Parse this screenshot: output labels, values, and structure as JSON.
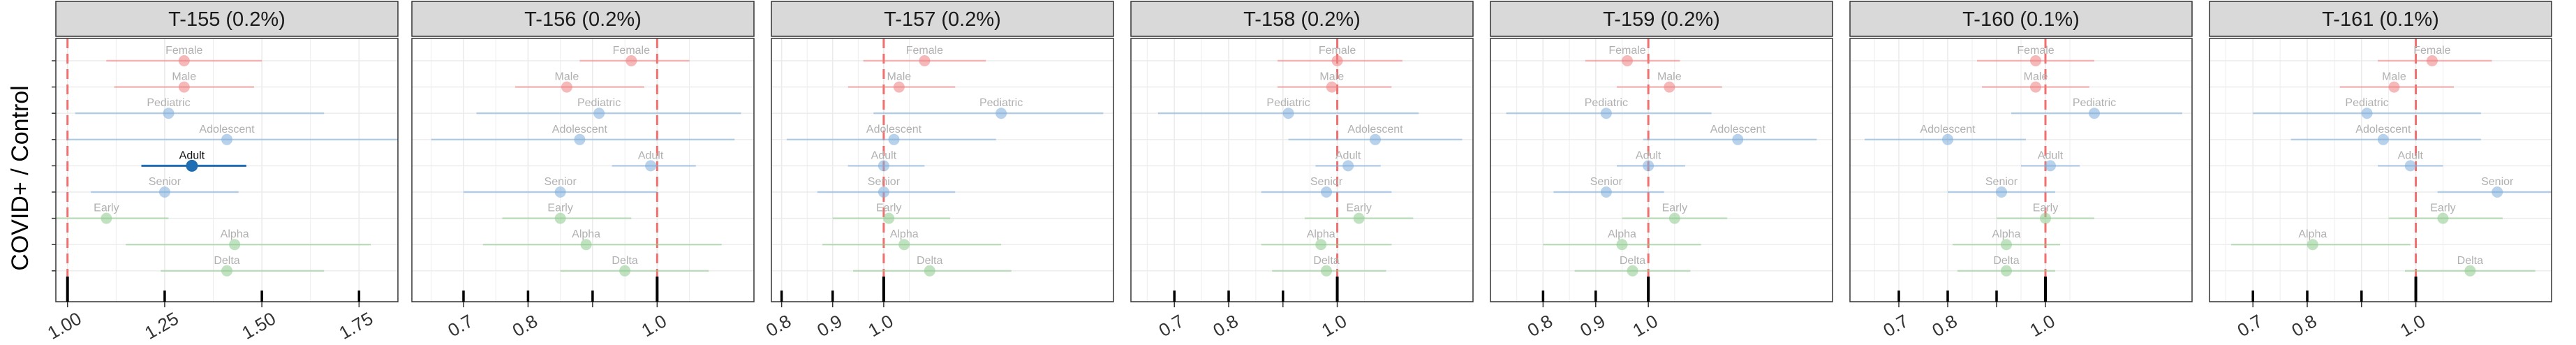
{
  "y_axis_label": "COVID+ / Control",
  "colors": {
    "sex": "#f08080",
    "age": "#7faedc",
    "variant": "#90cc90",
    "highlight": "#1f6db3",
    "reference_line": "#f07070",
    "strip_bg": "#d9d9d9",
    "grid": "#ebebeb"
  },
  "chart_data": [
    {
      "type": "scatter",
      "title": "T-155 (0.2%)",
      "xlim": [
        0.97,
        1.85
      ],
      "ticks": [
        1.0,
        1.25,
        1.5,
        1.75
      ],
      "tick_labels": [
        "1.00",
        "1.25",
        "1.50",
        "1.75"
      ],
      "reference_x": 1.0,
      "points": [
        {
          "label": "Female",
          "group": "sex",
          "y": 0,
          "x": 1.3,
          "lo": 1.1,
          "hi": 1.5,
          "highlight": false
        },
        {
          "label": "Male",
          "group": "sex",
          "y": 1,
          "x": 1.3,
          "lo": 1.12,
          "hi": 1.48,
          "highlight": false
        },
        {
          "label": "Pediatric",
          "group": "age",
          "y": 2,
          "x": 1.26,
          "lo": 1.02,
          "hi": 1.66,
          "highlight": false
        },
        {
          "label": "Adolescent",
          "group": "age",
          "y": 3,
          "x": 1.41,
          "lo": 1.0,
          "hi": 1.85,
          "highlight": false
        },
        {
          "label": "Adult",
          "group": "age",
          "y": 4,
          "x": 1.32,
          "lo": 1.19,
          "hi": 1.46,
          "highlight": true
        },
        {
          "label": "Senior",
          "group": "age",
          "y": 5,
          "x": 1.25,
          "lo": 1.06,
          "hi": 1.44,
          "highlight": false
        },
        {
          "label": "Early",
          "group": "variant",
          "y": 6,
          "x": 1.1,
          "lo": 0.97,
          "hi": 1.26,
          "highlight": false
        },
        {
          "label": "Alpha",
          "group": "variant",
          "y": 7,
          "x": 1.43,
          "lo": 1.15,
          "hi": 1.78,
          "highlight": false
        },
        {
          "label": "Delta",
          "group": "variant",
          "y": 8,
          "x": 1.41,
          "lo": 1.24,
          "hi": 1.66,
          "highlight": false
        }
      ]
    },
    {
      "type": "scatter",
      "title": "T-156 (0.2%)",
      "xlim": [
        0.62,
        1.15
      ],
      "ticks": [
        0.7,
        0.8,
        0.9,
        1.0
      ],
      "tick_labels": [
        "0.7",
        "0.8",
        "",
        "1.0"
      ],
      "reference_x": 1.0,
      "points": [
        {
          "label": "Female",
          "group": "sex",
          "y": 0,
          "x": 0.96,
          "lo": 0.88,
          "hi": 1.05,
          "highlight": false
        },
        {
          "label": "Male",
          "group": "sex",
          "y": 1,
          "x": 0.86,
          "lo": 0.78,
          "hi": 0.98,
          "highlight": false
        },
        {
          "label": "Pediatric",
          "group": "age",
          "y": 2,
          "x": 0.91,
          "lo": 0.72,
          "hi": 1.13,
          "highlight": false
        },
        {
          "label": "Adolescent",
          "group": "age",
          "y": 3,
          "x": 0.88,
          "lo": 0.65,
          "hi": 1.12,
          "highlight": false
        },
        {
          "label": "Adult",
          "group": "age",
          "y": 4,
          "x": 0.99,
          "lo": 0.93,
          "hi": 1.06,
          "highlight": false
        },
        {
          "label": "Senior",
          "group": "age",
          "y": 5,
          "x": 0.85,
          "lo": 0.7,
          "hi": 1.0,
          "highlight": false
        },
        {
          "label": "Early",
          "group": "variant",
          "y": 6,
          "x": 0.85,
          "lo": 0.76,
          "hi": 0.96,
          "highlight": false
        },
        {
          "label": "Alpha",
          "group": "variant",
          "y": 7,
          "x": 0.89,
          "lo": 0.73,
          "hi": 1.1,
          "highlight": false
        },
        {
          "label": "Delta",
          "group": "variant",
          "y": 8,
          "x": 0.95,
          "lo": 0.85,
          "hi": 1.08,
          "highlight": false
        }
      ]
    },
    {
      "type": "scatter",
      "title": "T-157 (0.2%)",
      "xlim": [
        0.78,
        1.45
      ],
      "ticks": [
        0.8,
        0.9,
        1.0
      ],
      "tick_labels": [
        "0.8",
        "0.9",
        "1.0"
      ],
      "reference_x": 1.0,
      "points": [
        {
          "label": "Female",
          "group": "sex",
          "y": 0,
          "x": 1.08,
          "lo": 0.96,
          "hi": 1.2,
          "highlight": false
        },
        {
          "label": "Male",
          "group": "sex",
          "y": 1,
          "x": 1.03,
          "lo": 0.93,
          "hi": 1.14,
          "highlight": false
        },
        {
          "label": "Pediatric",
          "group": "age",
          "y": 2,
          "x": 1.23,
          "lo": 0.98,
          "hi": 1.43,
          "highlight": false
        },
        {
          "label": "Adolescent",
          "group": "age",
          "y": 3,
          "x": 1.02,
          "lo": 0.81,
          "hi": 1.22,
          "highlight": false
        },
        {
          "label": "Adult",
          "group": "age",
          "y": 4,
          "x": 1.0,
          "lo": 0.93,
          "hi": 1.08,
          "highlight": false
        },
        {
          "label": "Senior",
          "group": "age",
          "y": 5,
          "x": 1.0,
          "lo": 0.87,
          "hi": 1.14,
          "highlight": false
        },
        {
          "label": "Early",
          "group": "variant",
          "y": 6,
          "x": 1.01,
          "lo": 0.9,
          "hi": 1.13,
          "highlight": false
        },
        {
          "label": "Alpha",
          "group": "variant",
          "y": 7,
          "x": 1.04,
          "lo": 0.88,
          "hi": 1.23,
          "highlight": false
        },
        {
          "label": "Delta",
          "group": "variant",
          "y": 8,
          "x": 1.09,
          "lo": 0.94,
          "hi": 1.25,
          "highlight": false
        }
      ]
    },
    {
      "type": "scatter",
      "title": "T-158 (0.2%)",
      "xlim": [
        0.62,
        1.25
      ],
      "ticks": [
        0.7,
        0.8,
        0.9,
        1.0
      ],
      "tick_labels": [
        "0.7",
        "0.8",
        "",
        "1.0"
      ],
      "reference_x": 1.0,
      "points": [
        {
          "label": "Female",
          "group": "sex",
          "y": 0,
          "x": 1.0,
          "lo": 0.89,
          "hi": 1.12,
          "highlight": false
        },
        {
          "label": "Male",
          "group": "sex",
          "y": 1,
          "x": 0.99,
          "lo": 0.89,
          "hi": 1.1,
          "highlight": false
        },
        {
          "label": "Pediatric",
          "group": "age",
          "y": 2,
          "x": 0.91,
          "lo": 0.67,
          "hi": 1.15,
          "highlight": false
        },
        {
          "label": "Adolescent",
          "group": "age",
          "y": 3,
          "x": 1.07,
          "lo": 0.91,
          "hi": 1.23,
          "highlight": false
        },
        {
          "label": "Adult",
          "group": "age",
          "y": 4,
          "x": 1.02,
          "lo": 0.96,
          "hi": 1.08,
          "highlight": false
        },
        {
          "label": "Senior",
          "group": "age",
          "y": 5,
          "x": 0.98,
          "lo": 0.86,
          "hi": 1.1,
          "highlight": false
        },
        {
          "label": "Early",
          "group": "variant",
          "y": 6,
          "x": 1.04,
          "lo": 0.94,
          "hi": 1.14,
          "highlight": false
        },
        {
          "label": "Alpha",
          "group": "variant",
          "y": 7,
          "x": 0.97,
          "lo": 0.86,
          "hi": 1.1,
          "highlight": false
        },
        {
          "label": "Delta",
          "group": "variant",
          "y": 8,
          "x": 0.98,
          "lo": 0.88,
          "hi": 1.09,
          "highlight": false
        }
      ]
    },
    {
      "type": "scatter",
      "title": "T-159 (0.2%)",
      "xlim": [
        0.7,
        1.35
      ],
      "ticks": [
        0.8,
        0.9,
        1.0
      ],
      "tick_labels": [
        "0.8",
        "0.9",
        "1.0"
      ],
      "reference_x": 1.0,
      "points": [
        {
          "label": "Female",
          "group": "sex",
          "y": 0,
          "x": 0.96,
          "lo": 0.88,
          "hi": 1.06,
          "highlight": false
        },
        {
          "label": "Male",
          "group": "sex",
          "y": 1,
          "x": 1.04,
          "lo": 0.94,
          "hi": 1.14,
          "highlight": false
        },
        {
          "label": "Pediatric",
          "group": "age",
          "y": 2,
          "x": 0.92,
          "lo": 0.73,
          "hi": 1.12,
          "highlight": false
        },
        {
          "label": "Adolescent",
          "group": "age",
          "y": 3,
          "x": 1.17,
          "lo": 0.99,
          "hi": 1.32,
          "highlight": false
        },
        {
          "label": "Adult",
          "group": "age",
          "y": 4,
          "x": 1.0,
          "lo": 0.94,
          "hi": 1.07,
          "highlight": false
        },
        {
          "label": "Senior",
          "group": "age",
          "y": 5,
          "x": 0.92,
          "lo": 0.82,
          "hi": 1.03,
          "highlight": false
        },
        {
          "label": "Early",
          "group": "variant",
          "y": 6,
          "x": 1.05,
          "lo": 0.95,
          "hi": 1.15,
          "highlight": false
        },
        {
          "label": "Alpha",
          "group": "variant",
          "y": 7,
          "x": 0.95,
          "lo": 0.8,
          "hi": 1.1,
          "highlight": false
        },
        {
          "label": "Delta",
          "group": "variant",
          "y": 8,
          "x": 0.97,
          "lo": 0.86,
          "hi": 1.08,
          "highlight": false
        }
      ]
    },
    {
      "type": "scatter",
      "title": "T-160 (0.1%)",
      "xlim": [
        0.6,
        1.3
      ],
      "ticks": [
        0.7,
        0.8,
        0.9,
        1.0
      ],
      "tick_labels": [
        "0.7",
        "0.8",
        "",
        "1.0"
      ],
      "reference_x": 1.0,
      "points": [
        {
          "label": "Female",
          "group": "sex",
          "y": 0,
          "x": 0.98,
          "lo": 0.86,
          "hi": 1.1,
          "highlight": false
        },
        {
          "label": "Male",
          "group": "sex",
          "y": 1,
          "x": 0.98,
          "lo": 0.87,
          "hi": 1.09,
          "highlight": false
        },
        {
          "label": "Pediatric",
          "group": "age",
          "y": 2,
          "x": 1.1,
          "lo": 0.93,
          "hi": 1.28,
          "highlight": false
        },
        {
          "label": "Adolescent",
          "group": "age",
          "y": 3,
          "x": 0.8,
          "lo": 0.63,
          "hi": 0.96,
          "highlight": false
        },
        {
          "label": "Adult",
          "group": "age",
          "y": 4,
          "x": 1.01,
          "lo": 0.95,
          "hi": 1.07,
          "highlight": false
        },
        {
          "label": "Senior",
          "group": "age",
          "y": 5,
          "x": 0.91,
          "lo": 0.8,
          "hi": 1.02,
          "highlight": false
        },
        {
          "label": "Early",
          "group": "variant",
          "y": 6,
          "x": 1.0,
          "lo": 0.9,
          "hi": 1.1,
          "highlight": false
        },
        {
          "label": "Alpha",
          "group": "variant",
          "y": 7,
          "x": 0.92,
          "lo": 0.81,
          "hi": 1.03,
          "highlight": false
        },
        {
          "label": "Delta",
          "group": "variant",
          "y": 8,
          "x": 0.92,
          "lo": 0.82,
          "hi": 1.02,
          "highlight": false
        }
      ]
    },
    {
      "type": "scatter",
      "title": "T-161 (0.1%)",
      "xlim": [
        0.62,
        1.25
      ],
      "ticks": [
        0.7,
        0.8,
        0.9,
        1.0
      ],
      "tick_labels": [
        "0.7",
        "0.8",
        "",
        "1.0"
      ],
      "reference_x": 1.0,
      "points": [
        {
          "label": "Female",
          "group": "sex",
          "y": 0,
          "x": 1.03,
          "lo": 0.93,
          "hi": 1.14,
          "highlight": false
        },
        {
          "label": "Male",
          "group": "sex",
          "y": 1,
          "x": 0.96,
          "lo": 0.86,
          "hi": 1.07,
          "highlight": false
        },
        {
          "label": "Pediatric",
          "group": "age",
          "y": 2,
          "x": 0.91,
          "lo": 0.7,
          "hi": 1.12,
          "highlight": false
        },
        {
          "label": "Adolescent",
          "group": "age",
          "y": 3,
          "x": 0.94,
          "lo": 0.77,
          "hi": 1.12,
          "highlight": false
        },
        {
          "label": "Adult",
          "group": "age",
          "y": 4,
          "x": 0.99,
          "lo": 0.93,
          "hi": 1.05,
          "highlight": false
        },
        {
          "label": "Senior",
          "group": "age",
          "y": 5,
          "x": 1.15,
          "lo": 1.04,
          "hi": 1.25,
          "highlight": false
        },
        {
          "label": "Early",
          "group": "variant",
          "y": 6,
          "x": 1.05,
          "lo": 0.95,
          "hi": 1.16,
          "highlight": false
        },
        {
          "label": "Alpha",
          "group": "variant",
          "y": 7,
          "x": 0.81,
          "lo": 0.66,
          "hi": 0.99,
          "highlight": false
        },
        {
          "label": "Delta",
          "group": "variant",
          "y": 8,
          "x": 1.1,
          "lo": 0.98,
          "hi": 1.22,
          "highlight": false
        }
      ]
    }
  ]
}
